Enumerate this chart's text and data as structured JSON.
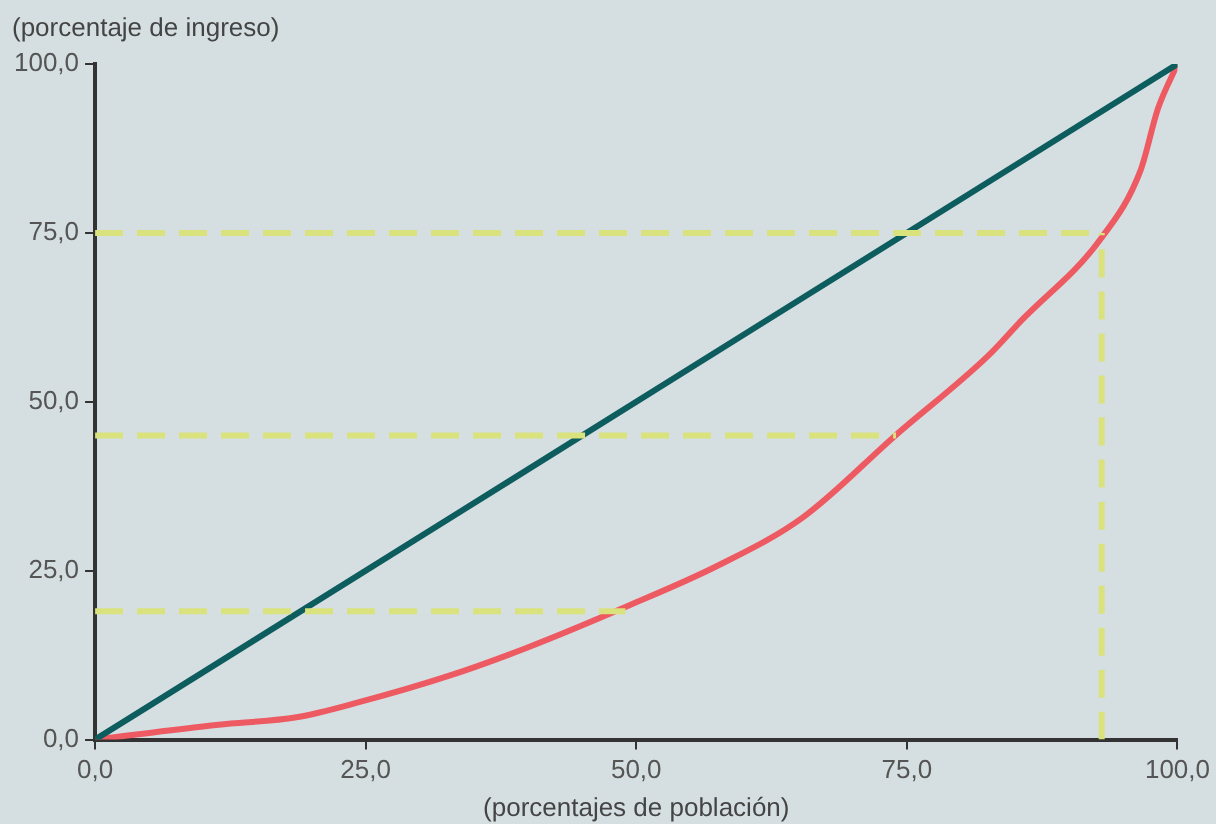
{
  "chart_data": {
    "type": "line",
    "xlabel": "(porcentajes de población)",
    "ylabel": "(porcentaje de ingreso)",
    "xlim": [
      0,
      100
    ],
    "ylim": [
      0,
      100
    ],
    "xticks": [
      {
        "value": 0,
        "label": "0,0"
      },
      {
        "value": 25,
        "label": "25,0"
      },
      {
        "value": 50,
        "label": "50,0"
      },
      {
        "value": 75,
        "label": "75,0"
      },
      {
        "value": 100,
        "label": "100,0"
      }
    ],
    "yticks": [
      {
        "value": 0,
        "label": "0,0"
      },
      {
        "value": 25,
        "label": "25,0"
      },
      {
        "value": 50,
        "label": "50,0"
      },
      {
        "value": 75,
        "label": "75,0"
      },
      {
        "value": 100,
        "label": "100,0"
      }
    ],
    "grid": false,
    "legend": false,
    "marker": "none",
    "series": [
      {
        "color": "#d9e27c",
        "line_style": "dashed",
        "x": [
          0,
          49
        ],
        "values": [
          19,
          19
        ]
      },
      {
        "color": "#d9e27c",
        "line_style": "dashed",
        "x": [
          0,
          74
        ],
        "values": [
          45,
          45
        ]
      },
      {
        "color": "#d9e27c",
        "line_style": "dashed",
        "x": [
          0,
          93
        ],
        "values": [
          75,
          75
        ]
      },
      {
        "color": "#d9e27c",
        "line_style": "dashed",
        "x": [
          93,
          93
        ],
        "values": [
          0,
          75
        ]
      },
      {
        "color": "#0d5c5e",
        "line_style": "solid",
        "x": [
          0,
          100
        ],
        "values": [
          0,
          100
        ]
      },
      {
        "color": "#ee5a62",
        "line_style": "solid",
        "x": [
          0,
          11.4,
          18.6,
          24.3,
          32.8,
          39.9,
          49.1,
          57.6,
          65.4,
          74,
          82.5,
          85.5,
          92.9,
          96.6,
          98.2,
          100
        ],
        "values": [
          0,
          2.2,
          3.3,
          5.5,
          9.5,
          13.6,
          19.7,
          25.8,
          32.9,
          45.1,
          56.8,
          61.9,
          74.1,
          84.3,
          93.4,
          100
        ]
      }
    ]
  }
}
